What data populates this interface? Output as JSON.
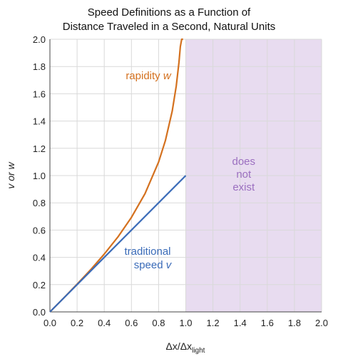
{
  "chart_data": {
    "type": "line",
    "title_line1": "Speed Definitions as a Function of",
    "title_line2": "Distance Traveled in a Second, Natural Units",
    "xlabel": "Δx/Δx",
    "xlabel_sub": "light",
    "ylabel": "v or w",
    "xlim": [
      0,
      2
    ],
    "ylim": [
      0,
      2
    ],
    "x_ticks": [
      "0.0",
      "0.2",
      "0.4",
      "0.6",
      "0.8",
      "1.0",
      "1.2",
      "1.4",
      "1.6",
      "1.8",
      "2.0"
    ],
    "y_ticks": [
      "0.0",
      "0.2",
      "0.4",
      "0.6",
      "0.8",
      "1.0",
      "1.2",
      "1.4",
      "1.6",
      "1.8",
      "2.0"
    ],
    "grid": true,
    "shaded_region": {
      "x_from": 1.0,
      "x_to": 2.0,
      "color": "#e8dcf0",
      "label_lines": [
        "does",
        "not",
        "exist"
      ],
      "label_color": "#9b6fc0"
    },
    "series": [
      {
        "name": "rapidity w",
        "color": "#d4711f",
        "x": [
          0,
          0.1,
          0.2,
          0.3,
          0.4,
          0.5,
          0.6,
          0.7,
          0.8,
          0.85,
          0.9,
          0.93,
          0.95,
          0.96,
          0.97,
          0.98
        ],
        "y": [
          0,
          0.1,
          0.203,
          0.31,
          0.424,
          0.549,
          0.693,
          0.867,
          1.099,
          1.256,
          1.472,
          1.658,
          1.832,
          1.946,
          2.0,
          2.0
        ]
      },
      {
        "name": "traditional speed v",
        "color": "#3a6bb8",
        "x": [
          0,
          1.0
        ],
        "y": [
          0,
          1.0
        ]
      }
    ],
    "annotations": [
      {
        "text_main": "rapidity ",
        "text_italic": "w",
        "color": "#d4711f"
      },
      {
        "text_line1": "traditional",
        "text_main": "speed ",
        "text_italic": "v",
        "color": "#3a6bb8"
      }
    ]
  }
}
